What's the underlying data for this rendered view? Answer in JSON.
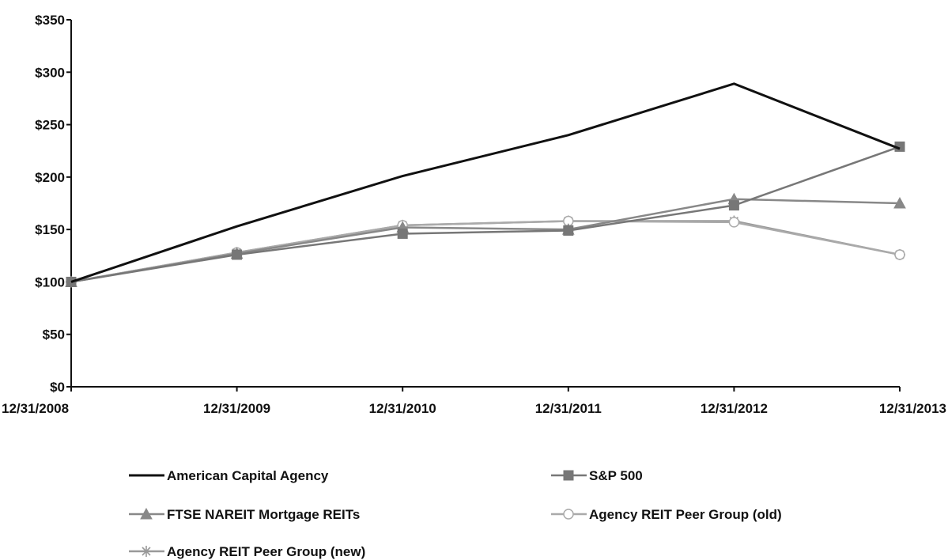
{
  "chart_data": {
    "type": "line",
    "title": "",
    "xlabel": "",
    "ylabel": "",
    "categories": [
      "12/31/2008",
      "12/31/2009",
      "12/31/2010",
      "12/31/2011",
      "12/31/2012",
      "12/31/2013"
    ],
    "yticks": [
      "$0",
      "$50",
      "$100",
      "$150",
      "$200",
      "$250",
      "$300",
      "$350"
    ],
    "ylim": [
      0,
      350
    ],
    "grid": false,
    "legend_position": "bottom",
    "series": [
      {
        "name": "American Capital Agency",
        "values": [
          100,
          153,
          201,
          240,
          289,
          227
        ],
        "color": "#111111",
        "marker": "none"
      },
      {
        "name": "S&P 500",
        "values": [
          100,
          126,
          146,
          149,
          173,
          229
        ],
        "color": "#777777",
        "marker": "square"
      },
      {
        "name": "FTSE NAREIT Mortgage REITs",
        "values": [
          100,
          127,
          152,
          150,
          179,
          175
        ],
        "color": "#888888",
        "marker": "triangle"
      },
      {
        "name": "Agency REIT Peer Group (old)",
        "values": [
          100,
          128,
          154,
          158,
          157,
          126
        ],
        "color": "#aaaaaa",
        "marker": "circle"
      },
      {
        "name": "Agency REIT Peer Group (new)",
        "values": [
          100,
          128,
          154,
          158,
          158,
          126
        ],
        "color": "#999999",
        "marker": "star"
      }
    ]
  }
}
